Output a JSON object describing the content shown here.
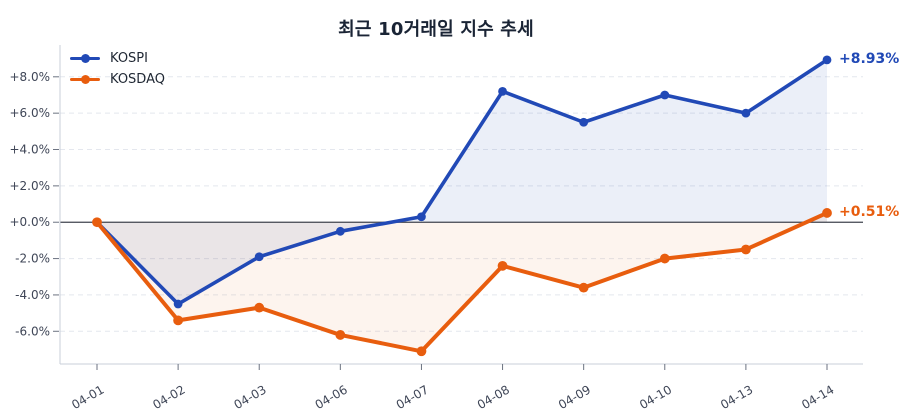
{
  "chart_data": {
    "type": "line",
    "title": "최근 10거래일 지수 추세",
    "categories": [
      "04-01",
      "04-02",
      "04-03",
      "04-06",
      "04-07",
      "04-08",
      "04-09",
      "04-10",
      "04-13",
      "04-14"
    ],
    "series": [
      {
        "name": "KOSPI",
        "color": "#2149b6",
        "values": [
          0.0,
          -4.5,
          -1.9,
          -0.5,
          0.3,
          7.2,
          5.5,
          7.0,
          6.0,
          8.93
        ],
        "end_label": "+8.93%"
      },
      {
        "name": "KOSDAQ",
        "color": "#e85d0e",
        "values": [
          0.0,
          -5.4,
          -4.7,
          -6.2,
          -7.1,
          -2.4,
          -3.6,
          -2.0,
          -1.5,
          0.51
        ],
        "end_label": "+0.51%"
      }
    ],
    "yticks": [
      {
        "value": 8,
        "label": "+8.0%"
      },
      {
        "value": 6,
        "label": "+6.0%"
      },
      {
        "value": 4,
        "label": "+4.0%"
      },
      {
        "value": 2,
        "label": "+2.0%"
      },
      {
        "value": 0,
        "label": "+0.0%"
      },
      {
        "value": -2,
        "label": "-2.0%"
      },
      {
        "value": -4,
        "label": "-4.0%"
      },
      {
        "value": -6,
        "label": "-6.0%"
      }
    ],
    "ylim": [
      -7.8,
      9.75
    ],
    "grid": "horizontal-dashed",
    "zero_line": true,
    "fill": "to-zero",
    "legend_position": "top-left",
    "colors": {
      "grid": "#e4e7ee",
      "zero_line": "#41454f",
      "spine": "#c9cfda",
      "tick": "#6b7280",
      "tick_label": "#3f4657",
      "title": "#1a2435"
    }
  }
}
